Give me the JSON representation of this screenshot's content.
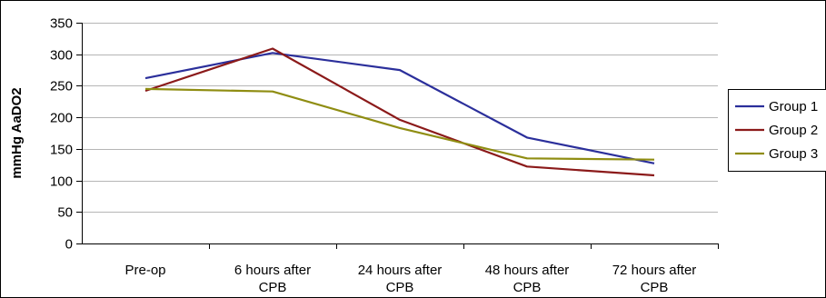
{
  "chart_data": {
    "type": "line",
    "ylabel": "mmHg  AaDO2",
    "ylim": [
      0,
      350
    ],
    "yticks": [
      0,
      50,
      100,
      150,
      200,
      250,
      300,
      350
    ],
    "grid": true,
    "legend_position": "right",
    "categories": [
      [
        "Pre-op"
      ],
      [
        "6 hours after",
        "CPB"
      ],
      [
        "24 hours after",
        "CPB"
      ],
      [
        "48 hours after",
        "CPB"
      ],
      [
        "72 hours after",
        "CPB"
      ]
    ],
    "series": [
      {
        "name": "Group 1",
        "color": "#2b2f9b",
        "values": [
          262,
          302,
          275,
          168,
          127
        ]
      },
      {
        "name": "Group 2",
        "color": "#8b1a1a",
        "values": [
          242,
          309,
          196,
          122,
          108
        ]
      },
      {
        "name": "Group 3",
        "color": "#8f8d12",
        "values": [
          245,
          241,
          183,
          135,
          133
        ]
      }
    ]
  }
}
